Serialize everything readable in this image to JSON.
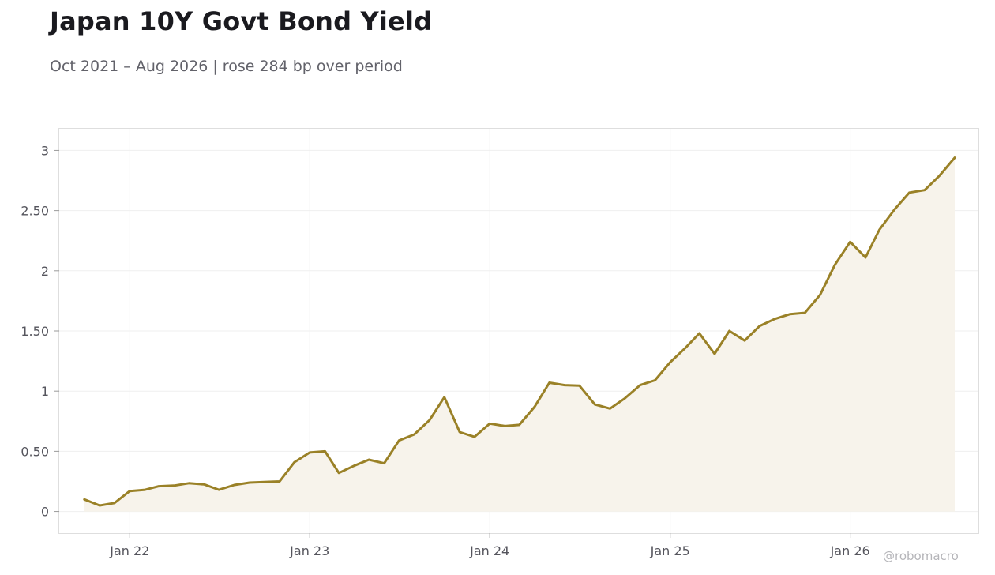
{
  "title": "Japan 10Y Govt Bond Yield",
  "subtitle": "Oct 2021 – Aug 2026 | rose 284 bp over period",
  "watermark": "@robomacro",
  "chart_data": {
    "type": "area",
    "title": "Japan 10Y Govt Bond Yield",
    "subtitle": "Oct 2021 – Aug 2026 | rose 284 bp over period",
    "xlabel": "",
    "ylabel": "",
    "grid": true,
    "legend": "none",
    "line_color": "#9a8127",
    "fill_color": "#f7f3eb",
    "x_ticks": [
      {
        "date": "2022-01-01",
        "label": "Jan 22"
      },
      {
        "date": "2023-01-01",
        "label": "Jan 23"
      },
      {
        "date": "2024-01-01",
        "label": "Jan 24"
      },
      {
        "date": "2025-01-01",
        "label": "Jan 25"
      },
      {
        "date": "2026-01-01",
        "label": "Jan 26"
      }
    ],
    "xlim": [
      "2021-08-11",
      "2026-09-18"
    ],
    "y_ticks": [
      {
        "value": 0,
        "label": "0"
      },
      {
        "value": 0.5,
        "label": "0.50"
      },
      {
        "value": 1,
        "label": "1"
      },
      {
        "value": 1.5,
        "label": "1.50"
      },
      {
        "value": 2,
        "label": "2"
      },
      {
        "value": 2.5,
        "label": "2.50"
      },
      {
        "value": 3,
        "label": "3"
      }
    ],
    "ylim": [
      -0.18,
      3.18
    ],
    "series": [
      {
        "x": [
          "2021-10-01",
          "2021-11-01",
          "2021-12-01",
          "2022-01-01",
          "2022-02-01",
          "2022-03-01",
          "2022-04-01",
          "2022-05-01",
          "2022-06-01",
          "2022-07-01",
          "2022-08-01",
          "2022-09-01",
          "2022-10-01",
          "2022-11-01",
          "2022-12-01",
          "2023-01-01",
          "2023-02-01",
          "2023-03-01",
          "2023-04-01",
          "2023-05-01",
          "2023-06-01",
          "2023-07-01",
          "2023-08-01",
          "2023-09-01",
          "2023-10-01",
          "2023-11-01",
          "2023-12-01",
          "2024-01-01",
          "2024-02-01",
          "2024-03-01",
          "2024-04-01",
          "2024-05-01",
          "2024-06-01",
          "2024-07-01",
          "2024-08-01",
          "2024-09-01",
          "2024-10-01",
          "2024-11-01",
          "2024-12-01",
          "2025-01-01",
          "2025-02-01",
          "2025-03-01",
          "2025-04-01",
          "2025-05-01",
          "2025-06-01",
          "2025-07-01",
          "2025-08-01",
          "2025-09-01",
          "2025-10-01",
          "2025-11-01",
          "2025-12-01",
          "2026-01-01",
          "2026-02-01",
          "2026-03-01",
          "2026-04-01",
          "2026-05-01",
          "2026-06-01",
          "2026-07-01",
          "2026-08-01"
        ],
        "values": [
          0.1,
          0.05,
          0.07,
          0.17,
          0.18,
          0.21,
          0.215,
          0.235,
          0.225,
          0.18,
          0.22,
          0.24,
          0.245,
          0.25,
          0.41,
          0.49,
          0.5,
          0.32,
          0.38,
          0.43,
          0.4,
          0.59,
          0.64,
          0.76,
          0.95,
          0.66,
          0.62,
          0.73,
          0.71,
          0.72,
          0.87,
          1.07,
          1.05,
          1.045,
          0.89,
          0.855,
          0.94,
          1.05,
          1.09,
          1.24,
          1.36,
          1.48,
          1.31,
          1.5,
          1.42,
          1.54,
          1.6,
          1.64,
          1.65,
          1.8,
          2.05,
          2.24,
          2.11,
          2.34,
          2.51,
          2.65,
          2.67,
          2.79,
          2.94
        ]
      }
    ]
  }
}
